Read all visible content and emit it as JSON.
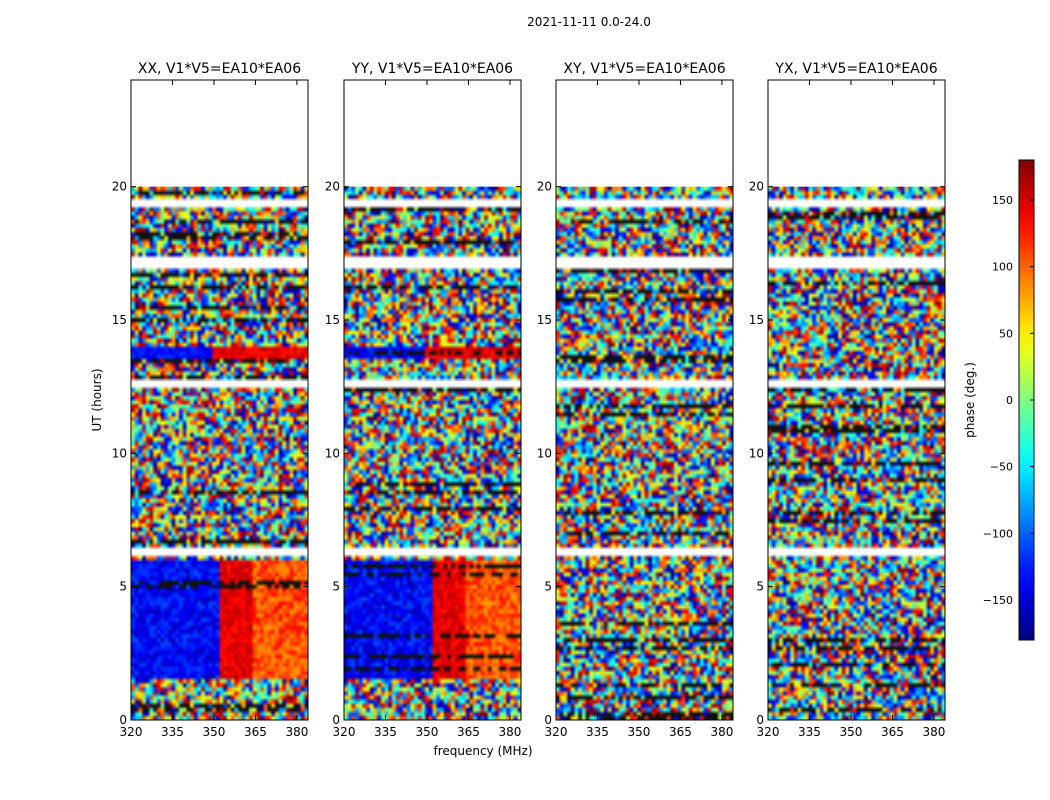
{
  "chart_data": {
    "type": "heatmap",
    "title": "2021-11-11 0.0-24.0",
    "xlabel": "frequency (MHz)",
    "ylabel": "UT (hours)",
    "xlim": [
      320,
      384
    ],
    "ylim": [
      0,
      24
    ],
    "xticks": [
      320,
      335,
      350,
      365,
      380
    ],
    "yticks": [
      0,
      5,
      10,
      15,
      20
    ],
    "data_extent_hours": [
      0,
      20
    ],
    "panels": [
      {
        "title": "XX, V1*V5=EA10*EA06",
        "pattern": "parallel"
      },
      {
        "title": "YY, V1*V5=EA10*EA06",
        "pattern": "parallel"
      },
      {
        "title": "XY, V1*V5=EA10*EA06",
        "pattern": "cross"
      },
      {
        "title": "YX, V1*V5=EA10*EA06",
        "pattern": "cross"
      }
    ],
    "flagged_gaps_hours": [
      [
        19.3,
        19.6
      ],
      [
        17.0,
        17.4
      ],
      [
        6.1,
        6.5
      ],
      [
        12.5,
        12.7
      ]
    ],
    "colorbar": {
      "label": "phase (deg.)",
      "range": [
        -180,
        180
      ],
      "ticks": [
        150,
        100,
        50,
        0,
        -50,
        -100,
        -150
      ],
      "tick_labels": [
        "150",
        "100",
        "50",
        "0",
        "−50",
        "−100",
        "−150"
      ],
      "colormap": "jet"
    }
  }
}
